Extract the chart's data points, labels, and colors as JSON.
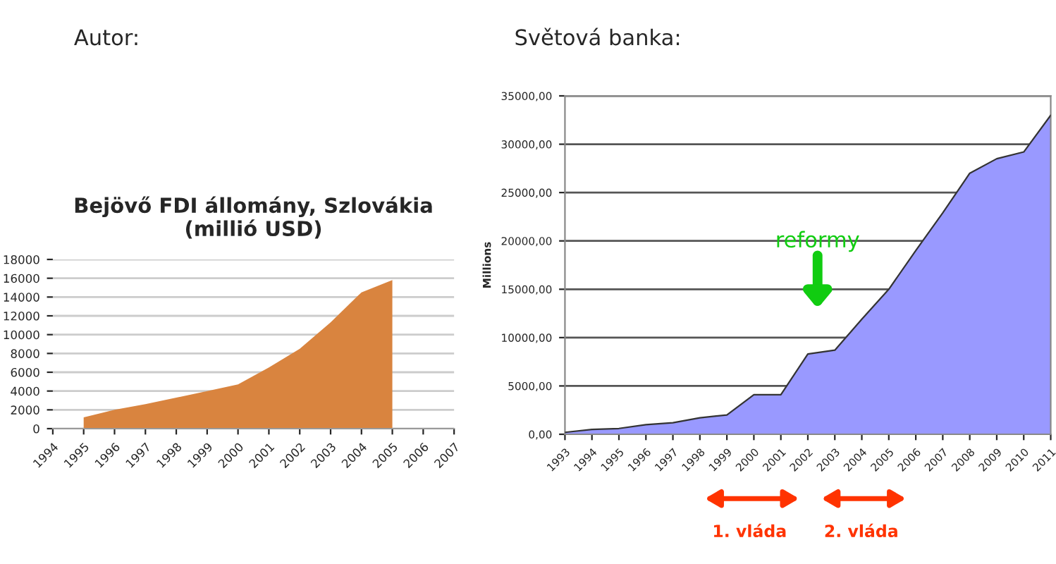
{
  "chart_data": [
    {
      "type": "area",
      "title": "Bejövő FDI állomány, Szlovákia\n(millió USD)",
      "annotations": [
        "Autor:"
      ],
      "x": [
        1995,
        1996,
        1997,
        1998,
        1999,
        2000,
        2001,
        2002,
        2003,
        2004,
        2005
      ],
      "series": [
        {
          "color": "#d9843f",
          "values": [
            1200,
            2000,
            2600,
            3300,
            4000,
            4700,
            6500,
            8500,
            11300,
            14500,
            15800
          ]
        }
      ],
      "xlim": [
        1994,
        2007
      ],
      "xticks": [
        1994,
        1995,
        1996,
        1997,
        1998,
        1999,
        2000,
        2001,
        2002,
        2003,
        2004,
        2005,
        2006,
        2007
      ],
      "ylim": [
        0,
        18000
      ],
      "yticks": [
        0,
        2000,
        4000,
        6000,
        8000,
        10000,
        12000,
        14000,
        16000,
        18000
      ],
      "grid": "y"
    },
    {
      "type": "area",
      "title": "Světová banka:",
      "ylabel": "Millions",
      "annotations": [
        "reformy",
        "1. vláda",
        "2. vláda"
      ],
      "x": [
        1993,
        1994,
        1995,
        1996,
        1997,
        1998,
        1999,
        2000,
        2001,
        2002,
        2003,
        2004,
        2005,
        2006,
        2007,
        2008,
        2009,
        2010,
        2011
      ],
      "series": [
        {
          "color": "#9999ff",
          "values": [
            200,
            500,
            600,
            1000,
            1200,
            1700,
            2000,
            4100,
            4100,
            8300,
            8700,
            11900,
            15000,
            19000,
            22900,
            27000,
            28500,
            29200,
            33000
          ]
        }
      ],
      "xlim": [
        1993,
        2011
      ],
      "xticks": [
        1993,
        1994,
        1995,
        1996,
        1997,
        1998,
        1999,
        2000,
        2001,
        2002,
        2003,
        2004,
        2005,
        2006,
        2007,
        2008,
        2009,
        2010,
        2011
      ],
      "ylim": [
        0,
        35000
      ],
      "yticks": [
        {
          "value": 0,
          "label": "0,00"
        },
        {
          "value": 5000,
          "label": "5000,00"
        },
        {
          "value": 10000,
          "label": "10000,00"
        },
        {
          "value": 15000,
          "label": "15000,00"
        },
        {
          "value": 20000,
          "label": "20000,00"
        },
        {
          "value": 25000,
          "label": "25000,00"
        },
        {
          "value": 30000,
          "label": "30000,00"
        },
        {
          "value": 35000,
          "label": "35000,00"
        }
      ],
      "grid": "y"
    }
  ]
}
